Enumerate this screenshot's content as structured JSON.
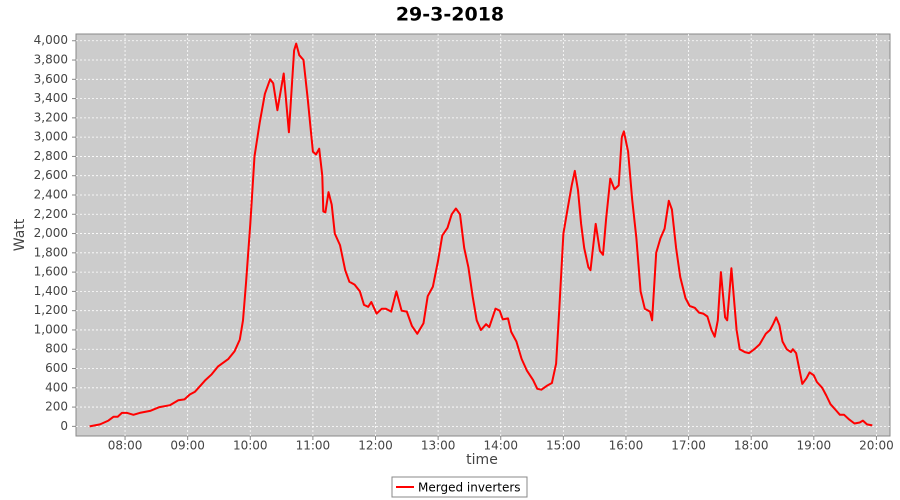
{
  "chart_data": {
    "type": "line",
    "title": "29-3-2018",
    "x_label": "time",
    "y_label": "Watt",
    "x": [
      "07:26",
      "07:36",
      "07:44",
      "07:49",
      "07:53",
      "07:57",
      "08:02",
      "08:08",
      "08:14",
      "08:24",
      "08:33",
      "08:43",
      "08:51",
      "08:57",
      "09:02",
      "09:07",
      "09:12",
      "09:17",
      "09:23",
      "09:29",
      "09:39",
      "09:45",
      "09:50",
      "09:53",
      "09:56",
      "10:00",
      "10:04",
      "10:09",
      "10:14",
      "10:19",
      "10:22",
      "10:26",
      "10:32",
      "10:37",
      "10:42",
      "10:44",
      "10:47",
      "10:51",
      "10:55",
      "11:00",
      "11:03",
      "11:06",
      "11:09",
      "11:10",
      "11:12",
      "11:15",
      "11:18",
      "11:21",
      "11:26",
      "11:31",
      "11:35",
      "11:40",
      "11:45",
      "11:49",
      "11:53",
      "11:56",
      "12:01",
      "12:06",
      "12:10",
      "12:15",
      "12:20",
      "12:25",
      "12:30",
      "12:35",
      "12:40",
      "12:46",
      "12:50",
      "12:55",
      "13:00",
      "13:04",
      "13:09",
      "13:13",
      "13:17",
      "13:21",
      "13:25",
      "13:29",
      "13:33",
      "13:37",
      "13:41",
      "13:46",
      "13:49",
      "13:55",
      "13:59",
      "14:02",
      "14:07",
      "14:10",
      "14:15",
      "14:20",
      "14:25",
      "14:31",
      "14:35",
      "14:39",
      "14:44",
      "14:49",
      "14:53",
      "14:56",
      "15:00",
      "15:04",
      "15:08",
      "15:11",
      "15:14",
      "15:17",
      "15:20",
      "15:24",
      "15:26",
      "15:31",
      "15:35",
      "15:38",
      "15:41",
      "15:45",
      "15:49",
      "15:53",
      "15:56",
      "15:58",
      "16:02",
      "16:06",
      "16:10",
      "16:14",
      "16:18",
      "16:23",
      "16:25",
      "16:29",
      "16:33",
      "16:37",
      "16:41",
      "16:44",
      "16:48",
      "16:52",
      "16:57",
      "17:01",
      "17:06",
      "17:10",
      "17:14",
      "17:18",
      "17:22",
      "17:25",
      "17:28",
      "17:31",
      "17:35",
      "17:37",
      "17:41",
      "17:46",
      "17:49",
      "17:54",
      "17:58",
      "18:03",
      "18:08",
      "18:14",
      "18:18",
      "18:21",
      "18:24",
      "18:27",
      "18:30",
      "18:34",
      "18:38",
      "18:40",
      "18:43",
      "18:46",
      "18:49",
      "18:53",
      "18:56",
      "19:00",
      "19:03",
      "19:08",
      "19:12",
      "19:16",
      "19:21",
      "19:25",
      "19:29",
      "19:34",
      "19:39",
      "19:44",
      "19:47",
      "19:51",
      "19:56"
    ],
    "series": [
      {
        "name": "Merged inverters",
        "color": "#ff0000",
        "values": [
          0,
          20,
          60,
          100,
          100,
          140,
          140,
          120,
          140,
          160,
          200,
          220,
          270,
          280,
          330,
          360,
          420,
          480,
          540,
          620,
          700,
          780,
          900,
          1100,
          1500,
          2100,
          2800,
          3150,
          3450,
          3600,
          3560,
          3280,
          3660,
          3050,
          3900,
          3970,
          3850,
          3800,
          3400,
          2850,
          2820,
          2880,
          2600,
          2230,
          2220,
          2430,
          2300,
          2000,
          1880,
          1620,
          1500,
          1470,
          1400,
          1260,
          1240,
          1290,
          1170,
          1220,
          1220,
          1190,
          1400,
          1200,
          1190,
          1040,
          960,
          1070,
          1350,
          1450,
          1720,
          1980,
          2060,
          2200,
          2260,
          2200,
          1850,
          1650,
          1350,
          1100,
          1000,
          1060,
          1030,
          1220,
          1200,
          1110,
          1120,
          980,
          880,
          700,
          580,
          480,
          390,
          380,
          420,
          450,
          650,
          1200,
          2000,
          2250,
          2500,
          2650,
          2450,
          2100,
          1850,
          1650,
          1620,
          2100,
          1820,
          1780,
          2150,
          2570,
          2460,
          2500,
          3000,
          3060,
          2850,
          2350,
          1950,
          1400,
          1220,
          1190,
          1100,
          1800,
          1950,
          2050,
          2340,
          2250,
          1850,
          1550,
          1330,
          1250,
          1230,
          1180,
          1170,
          1140,
          1000,
          930,
          1100,
          1600,
          1130,
          1100,
          1640,
          1000,
          800,
          770,
          760,
          800,
          850,
          960,
          1000,
          1060,
          1130,
          1050,
          880,
          800,
          770,
          800,
          760,
          600,
          440,
          500,
          560,
          530,
          460,
          400,
          320,
          230,
          170,
          120,
          120,
          70,
          30,
          40,
          60,
          20,
          10
        ]
      }
    ],
    "xlim": [
      "07:13",
      "20:13"
    ],
    "xticks": [
      "08:00",
      "09:00",
      "10:00",
      "11:00",
      "12:00",
      "13:00",
      "14:00",
      "15:00",
      "16:00",
      "17:00",
      "18:00",
      "19:00",
      "20:00"
    ],
    "ylim": [
      -100,
      4070
    ],
    "yticks": [
      0,
      200,
      400,
      600,
      800,
      {
        "value": 1000,
        "label": "1,000"
      },
      {
        "value": 1200,
        "label": "1,200"
      },
      {
        "value": 1400,
        "label": "1,400"
      },
      {
        "value": 1600,
        "label": "1,600"
      },
      {
        "value": 1800,
        "label": "1,800"
      },
      {
        "value": 2000,
        "label": "2,000"
      },
      {
        "value": 2200,
        "label": "2,200"
      },
      {
        "value": 2400,
        "label": "2,400"
      },
      {
        "value": 2600,
        "label": "2,600"
      },
      {
        "value": 2800,
        "label": "2,800"
      },
      {
        "value": 3000,
        "label": "3,000"
      },
      {
        "value": 3200,
        "label": "3,200"
      },
      {
        "value": 3400,
        "label": "3,400"
      },
      {
        "value": 3600,
        "label": "3,600"
      },
      {
        "value": 3800,
        "label": "3,800"
      },
      {
        "value": 4000,
        "label": "4,000"
      }
    ],
    "grid": true,
    "plot_background": "#cccccc",
    "legend": "bottom"
  }
}
